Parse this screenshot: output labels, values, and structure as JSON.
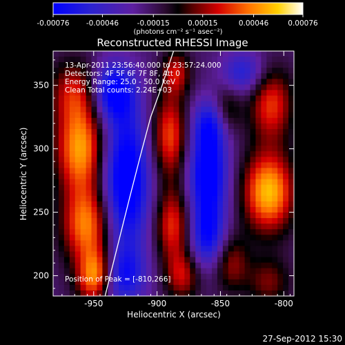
{
  "chart_data": {
    "type": "heatmap",
    "title": "Reconstructed RHESSI Image",
    "xlabel": "Heliocentric X (arcsec)",
    "ylabel": "Heliocentric Y (arcsec)",
    "xlim": [
      -982,
      -792
    ],
    "ylim": [
      184,
      377
    ],
    "x_ticks": [
      -950,
      -900,
      -850,
      -800
    ],
    "x_tick_labels": [
      "-950",
      "-900",
      "-850",
      "-800"
    ],
    "y_ticks": [
      200,
      250,
      300,
      350
    ],
    "y_tick_labels": [
      "200",
      "250",
      "300",
      "350"
    ],
    "colorbar": {
      "min": -0.00076,
      "max": 0.00076,
      "ticks": [
        -0.00076,
        -0.00046,
        -0.00015,
        0.00015,
        0.00046,
        0.00076
      ],
      "tick_labels": [
        "-0.00076",
        "-0.00046",
        "-0.00015",
        "0.00015",
        "0.00046",
        "0.00076"
      ],
      "unit_label": "(photons cm⁻² s⁻¹ asec⁻²)",
      "colormap": "blue-purple-black-red-orange-yellow-white"
    },
    "annotations": [
      "13-Apr-2011 23:56:40.000 to 23:57:24.000",
      "Detectors: 4F 5F 6F 7F 8F, Att 0",
      "Energy Range: 25.0 - 50.0 keV",
      "Clean    Total counts: 2.24E+03"
    ],
    "peak_label": "Position of Peak = [-810,266]",
    "peak": [
      -810,
      266
    ],
    "limb_line": [
      [
        -941,
        184
      ],
      [
        -932,
        220
      ],
      [
        -922,
        260
      ],
      [
        -913,
        295
      ],
      [
        -905,
        325
      ],
      [
        -896,
        350
      ],
      [
        -887,
        377
      ]
    ],
    "blobs": [
      {
        "x": -960,
        "y": 300,
        "sx": 14,
        "sy": 24,
        "v": 0.0007
      },
      {
        "x": -955,
        "y": 240,
        "sx": 14,
        "sy": 22,
        "v": 0.00065
      },
      {
        "x": -965,
        "y": 345,
        "sx": 14,
        "sy": 18,
        "v": 0.0004
      },
      {
        "x": -950,
        "y": 195,
        "sx": 10,
        "sy": 14,
        "v": 0.00045
      },
      {
        "x": -945,
        "y": 205,
        "sx": 10,
        "sy": 14,
        "v": 0.0004
      },
      {
        "x": -925,
        "y": 275,
        "sx": 14,
        "sy": 40,
        "v": -0.00075
      },
      {
        "x": -930,
        "y": 200,
        "sx": 14,
        "sy": 16,
        "v": -0.0005
      },
      {
        "x": -935,
        "y": 345,
        "sx": 12,
        "sy": 16,
        "v": -0.0006
      },
      {
        "x": -890,
        "y": 310,
        "sx": 10,
        "sy": 24,
        "v": 0.00055
      },
      {
        "x": -888,
        "y": 240,
        "sx": 10,
        "sy": 20,
        "v": 0.0005
      },
      {
        "x": -880,
        "y": 200,
        "sx": 10,
        "sy": 14,
        "v": 0.0004
      },
      {
        "x": -885,
        "y": 360,
        "sx": 8,
        "sy": 12,
        "v": 0.0004
      },
      {
        "x": -860,
        "y": 280,
        "sx": 11,
        "sy": 26,
        "v": -0.0007
      },
      {
        "x": -860,
        "y": 230,
        "sx": 10,
        "sy": 18,
        "v": -0.0005
      },
      {
        "x": -858,
        "y": 320,
        "sx": 10,
        "sy": 14,
        "v": -0.0004
      },
      {
        "x": -842,
        "y": 210,
        "sx": 10,
        "sy": 16,
        "v": 0.00035
      },
      {
        "x": -845,
        "y": 330,
        "sx": 8,
        "sy": 14,
        "v": 0.0003
      },
      {
        "x": -812,
        "y": 266,
        "sx": 14,
        "sy": 22,
        "v": 0.00076
      },
      {
        "x": -810,
        "y": 335,
        "sx": 12,
        "sy": 20,
        "v": 0.0005
      },
      {
        "x": -812,
        "y": 195,
        "sx": 12,
        "sy": 14,
        "v": 0.0003
      },
      {
        "x": -832,
        "y": 360,
        "sx": 12,
        "sy": 12,
        "v": -0.0004
      }
    ]
  },
  "footer": {
    "timestamp": "27-Sep-2012 15:30"
  }
}
